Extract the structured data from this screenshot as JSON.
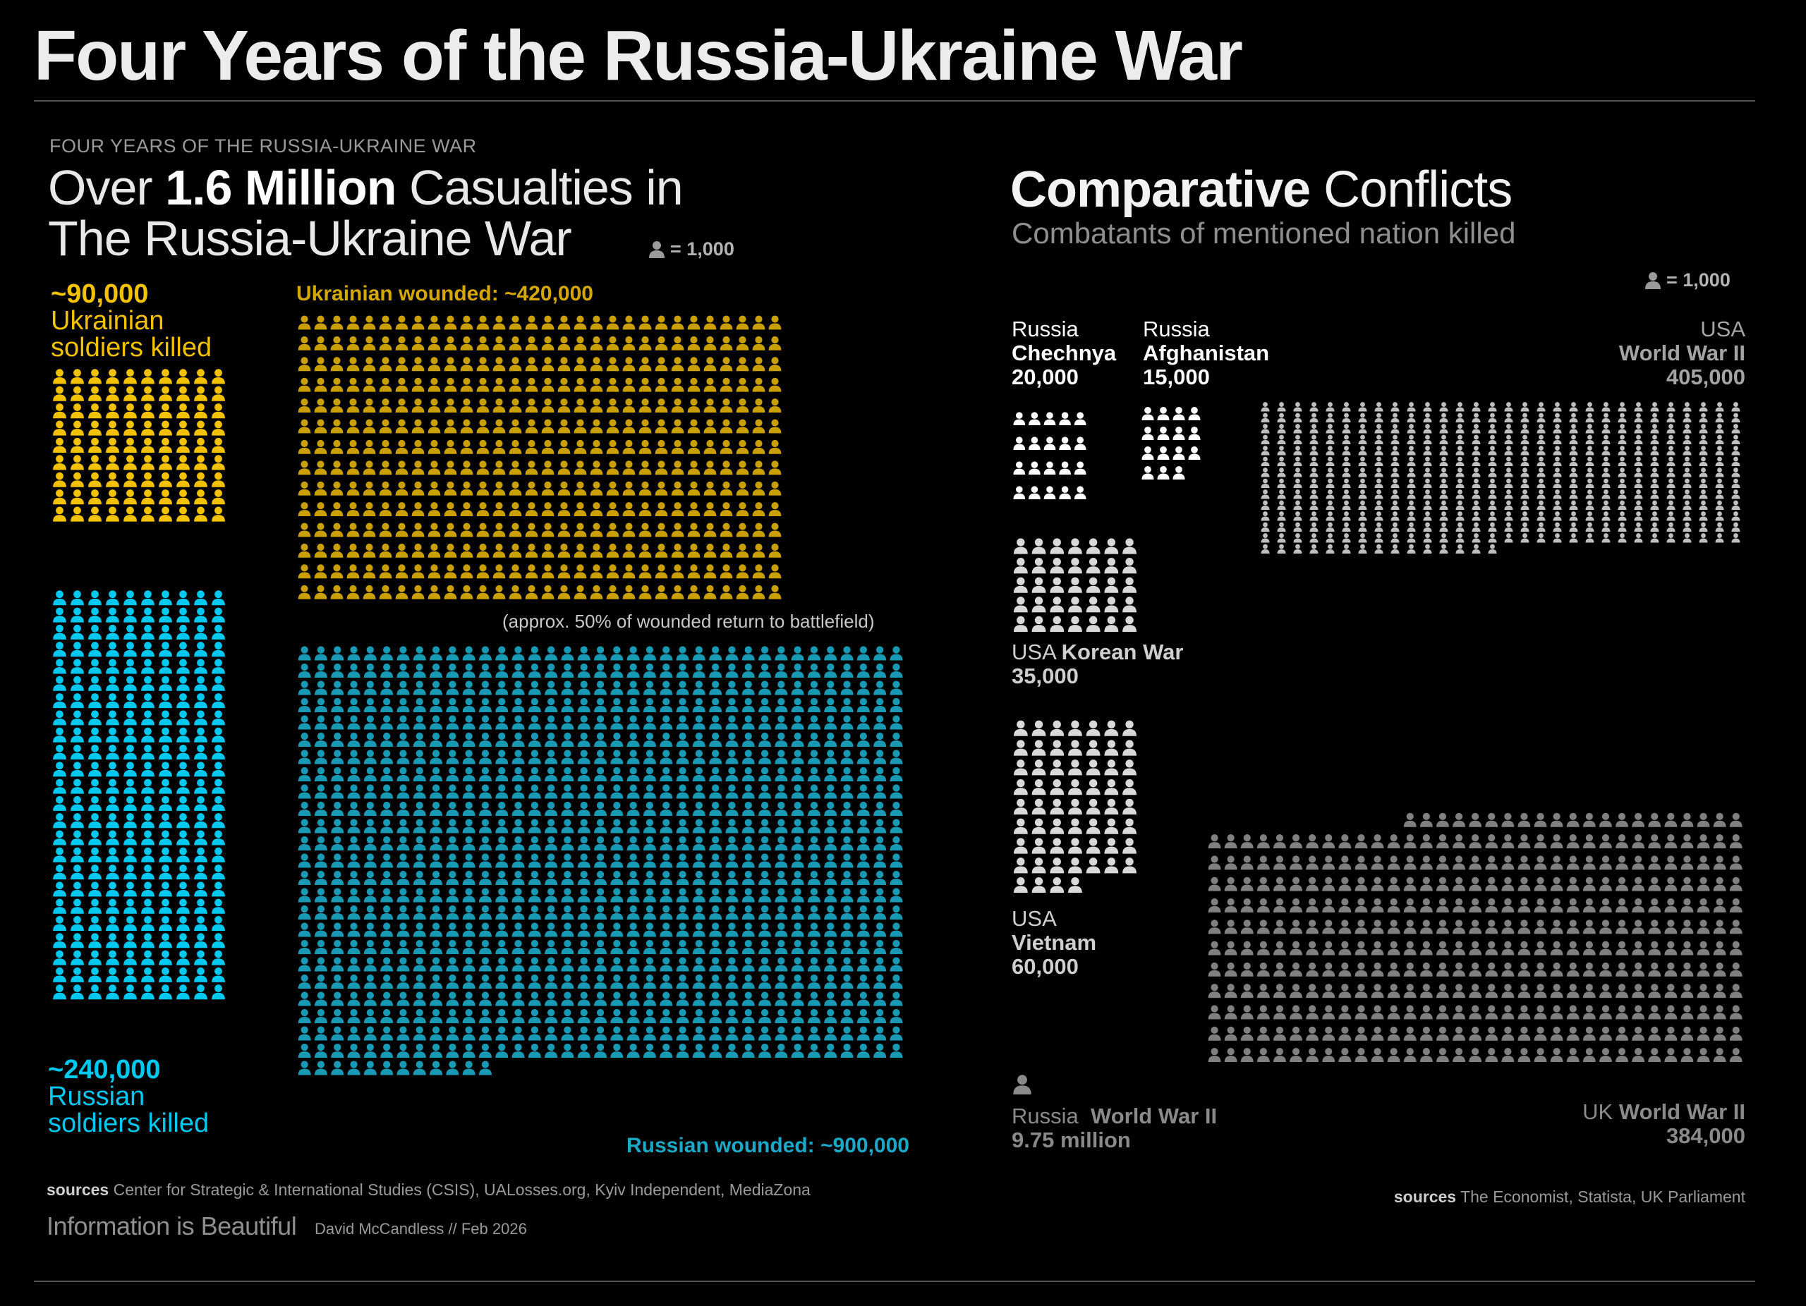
{
  "page_title": "Four Years of the Russia-Ukraine War",
  "kicker": "FOUR YEARS OF THE RUSSIA-UKRAINE WAR",
  "main_title": {
    "pre": "Over ",
    "bold": "1.6 Million",
    "post": " Casualties in",
    "line2": "The Russia-Ukraine War"
  },
  "legend_label": "= 1,000",
  "ukr_killed": {
    "value": "~90,000",
    "line1": "Ukrainian",
    "line2": "soldiers killed"
  },
  "rus_killed": {
    "value": "~240,000",
    "line1": "Russian",
    "line2": "soldiers killed"
  },
  "ukr_wounded_label": "Ukrainian wounded: ~420,000",
  "rus_wounded_label": "Russian wounded: ~900,000",
  "wounded_note": "(approx. 50% of wounded return to battlefield)",
  "sources_left": {
    "label": "sources",
    "text": " Center for Strategic & International Studies (CSIS), UALosses.org, Kyiv Independent, MediaZona"
  },
  "brand": "Information is Beautiful",
  "byline": "David McCandless // Feb 2026",
  "comparative": {
    "title_bold": "Comparative",
    "title_rest": " Conflicts",
    "subtitle": "Combatants of mentioned nation killed"
  },
  "conflicts": {
    "chechnya": {
      "country": "Russia",
      "name": "Chechnya",
      "value": "20,000"
    },
    "afghanistan": {
      "country": "Russia",
      "name": "Afghanistan",
      "value": "15,000"
    },
    "usa_ww2": {
      "country": "USA",
      "name": "World War II",
      "value": "405,000"
    },
    "korea": {
      "country": "USA",
      "name": "Korean War",
      "value": "35,000"
    },
    "vietnam": {
      "country": "USA",
      "name": "Vietnam",
      "value": "60,000"
    },
    "russia_ww2": {
      "country": "Russia",
      "name": "World War II",
      "value": "9.75 million"
    },
    "uk_ww2": {
      "country": "UK",
      "name": "World War II",
      "value": "384,000"
    }
  },
  "sources_right": {
    "label": "sources",
    "text": " The Economist, Statista, UK Parliament"
  },
  "colors": {
    "ukraine": "#f2c200",
    "ukraine_wounded": "#c9a000",
    "russia": "#00c8ee",
    "russia_wounded": "#1899b4",
    "chechnya": "#ffffff",
    "afghanistan": "#ffffff",
    "korea": "#d9d9d9",
    "vietnam": "#d9d9d9",
    "usa_ww2": "#bfbfbf",
    "uk_ww2": "#808080",
    "legend_icon": "#9a9a9a"
  },
  "icon": "person-icon",
  "chart_data": [
    {
      "type": "bar",
      "title": "Over 1.6 Million Casualties in The Russia-Ukraine War",
      "unit": "1 icon = 1,000",
      "categories": [
        "Ukrainian soldiers killed",
        "Ukrainian wounded",
        "Russian soldiers killed",
        "Russian wounded"
      ],
      "values": [
        90000,
        420000,
        240000,
        900000
      ]
    },
    {
      "type": "bar",
      "title": "Comparative Conflicts",
      "subtitle": "Combatants of mentioned nation killed",
      "unit": "1 icon = 1,000",
      "categories": [
        "Russia Chechnya",
        "Russia Afghanistan",
        "USA World War II",
        "USA Korean War",
        "USA Vietnam",
        "Russia World War II",
        "UK World War II"
      ],
      "values": [
        20000,
        15000,
        405000,
        35000,
        60000,
        9750000,
        384000
      ]
    }
  ]
}
